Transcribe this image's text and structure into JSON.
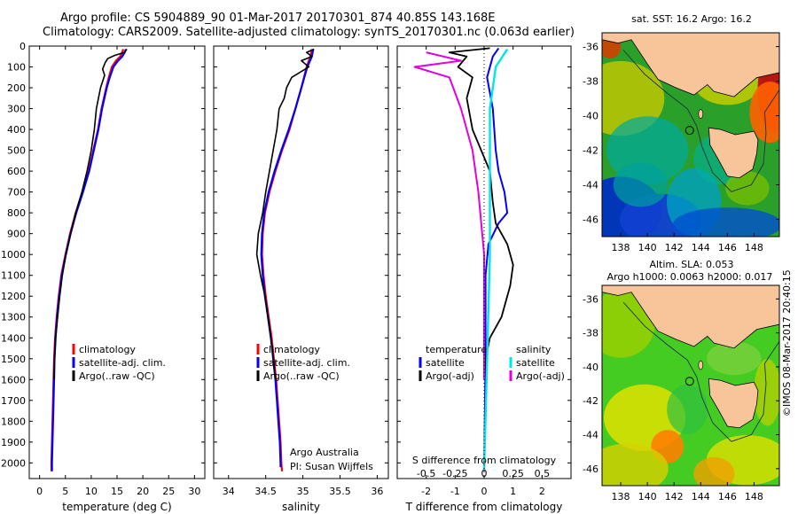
{
  "header": {
    "title_line1": "Argo profile: CS 5904889_90 01-Mar-2017 20170301_874 40.85S 143.168E",
    "title_line2": "Climatology: CARS2009. Satellite-adjusted climatology: synTS_20170301.nc (0.063d earlier)"
  },
  "stamp": "©IMOS 08-Mar-2017 20:40:15",
  "colors": {
    "climatology": "#ff0000",
    "satellite": "#0000ff",
    "argo": "#000000",
    "sal_satellite": "#00e5e5",
    "sal_argo": "#e000e0",
    "land": "#f8c49a"
  },
  "chart_data": [
    {
      "type": "line",
      "xlabel": "temperature (deg C)",
      "xlim": [
        -2,
        32
      ],
      "x_ticks": [
        "0",
        "5",
        "10",
        "15",
        "20",
        "25",
        "30"
      ],
      "ylim": [
        2075,
        0
      ],
      "y_ticks": [
        "0",
        "100",
        "200",
        "300",
        "400",
        "500",
        "600",
        "700",
        "800",
        "900",
        "1000",
        "1100",
        "1200",
        "1300",
        "1400",
        "1500",
        "1600",
        "1700",
        "1800",
        "1900",
        "2000"
      ],
      "legend": [
        "climatology",
        "satellite-adj. clim.",
        "Argo(..raw -QC)"
      ],
      "legend_position": "lower-right",
      "series": [
        {
          "name": "climatology",
          "values": [
            [
              16.2,
              15
            ],
            [
              16.0,
              30
            ],
            [
              15.6,
              50
            ],
            [
              14.8,
              70
            ],
            [
              14.0,
              100
            ],
            [
              13.4,
              150
            ],
            [
              12.9,
              200
            ],
            [
              12.0,
              300
            ],
            [
              11.3,
              400
            ],
            [
              10.4,
              500
            ],
            [
              9.5,
              600
            ],
            [
              8.3,
              700
            ],
            [
              7.0,
              800
            ],
            [
              5.9,
              900
            ],
            [
              5.0,
              1000
            ],
            [
              4.2,
              1100
            ],
            [
              3.7,
              1200
            ],
            [
              3.3,
              1300
            ],
            [
              3.0,
              1400
            ],
            [
              2.8,
              1500
            ],
            [
              2.7,
              1600
            ],
            [
              2.6,
              1700
            ],
            [
              2.5,
              1800
            ],
            [
              2.4,
              1900
            ],
            [
              2.3,
              2000
            ],
            [
              2.3,
              2040
            ]
          ]
        },
        {
          "name": "satellite-adj. clim.",
          "values": [
            [
              16.7,
              15
            ],
            [
              16.5,
              30
            ],
            [
              16.0,
              50
            ],
            [
              15.2,
              70
            ],
            [
              14.3,
              100
            ],
            [
              13.6,
              150
            ],
            [
              13.0,
              200
            ],
            [
              12.1,
              300
            ],
            [
              11.4,
              400
            ],
            [
              10.5,
              500
            ],
            [
              9.6,
              600
            ],
            [
              8.4,
              700
            ],
            [
              7.1,
              800
            ],
            [
              6.0,
              900
            ],
            [
              5.1,
              1000
            ],
            [
              4.3,
              1100
            ],
            [
              3.8,
              1200
            ],
            [
              3.4,
              1300
            ],
            [
              3.1,
              1400
            ],
            [
              2.9,
              1500
            ],
            [
              2.8,
              1600
            ],
            [
              2.7,
              1700
            ],
            [
              2.6,
              1800
            ],
            [
              2.5,
              1900
            ],
            [
              2.4,
              2000
            ],
            [
              2.4,
              2040
            ]
          ]
        },
        {
          "name": "Argo(..raw -QC)",
          "values": [
            [
              16.9,
              15
            ],
            [
              16.4,
              30
            ],
            [
              14.5,
              45
            ],
            [
              13.2,
              60
            ],
            [
              12.7,
              80
            ],
            [
              12.2,
              110
            ],
            [
              12.6,
              140
            ],
            [
              11.8,
              200
            ],
            [
              11.0,
              300
            ],
            [
              10.6,
              400
            ],
            [
              10.0,
              500
            ],
            [
              9.2,
              600
            ],
            [
              8.2,
              700
            ],
            [
              7.0,
              800
            ],
            [
              6.0,
              900
            ],
            [
              5.1,
              1000
            ],
            [
              4.4,
              1100
            ],
            [
              3.9,
              1200
            ],
            [
              3.5,
              1300
            ],
            [
              3.1,
              1400
            ],
            [
              2.9,
              1500
            ],
            [
              2.8,
              1600
            ]
          ]
        }
      ]
    },
    {
      "type": "line",
      "xlabel": "salinity",
      "xlim": [
        33.8,
        36.15
      ],
      "x_ticks": [
        "34",
        "34.5",
        "35",
        "35.5",
        "36"
      ],
      "ylim": [
        2075,
        0
      ],
      "legend": [
        "climatology",
        "satellite-adj. clim.",
        "Argo(..raw -QC)"
      ],
      "legend_position": "lower-right",
      "annotation": [
        "Argo Australia",
        "PI: Susan Wijffels"
      ],
      "series": [
        {
          "name": "climatology",
          "values": [
            [
              35.12,
              15
            ],
            [
              35.1,
              50
            ],
            [
              35.05,
              100
            ],
            [
              34.98,
              200
            ],
            [
              34.9,
              300
            ],
            [
              34.82,
              400
            ],
            [
              34.72,
              500
            ],
            [
              34.63,
              600
            ],
            [
              34.55,
              700
            ],
            [
              34.49,
              800
            ],
            [
              34.46,
              900
            ],
            [
              34.45,
              1000
            ],
            [
              34.47,
              1100
            ],
            [
              34.5,
              1200
            ],
            [
              34.54,
              1300
            ],
            [
              34.58,
              1400
            ],
            [
              34.61,
              1500
            ],
            [
              34.64,
              1600
            ],
            [
              34.66,
              1700
            ],
            [
              34.68,
              1800
            ],
            [
              34.7,
              1900
            ],
            [
              34.71,
              2000
            ],
            [
              34.72,
              2040
            ]
          ]
        },
        {
          "name": "satellite-adj. clim.",
          "values": [
            [
              35.14,
              15
            ],
            [
              35.12,
              50
            ],
            [
              35.06,
              100
            ],
            [
              34.98,
              200
            ],
            [
              34.9,
              300
            ],
            [
              34.81,
              400
            ],
            [
              34.71,
              500
            ],
            [
              34.62,
              600
            ],
            [
              34.54,
              700
            ],
            [
              34.48,
              800
            ],
            [
              34.45,
              900
            ],
            [
              34.44,
              1000
            ],
            [
              34.46,
              1100
            ],
            [
              34.49,
              1200
            ],
            [
              34.53,
              1300
            ],
            [
              34.57,
              1400
            ],
            [
              34.6,
              1500
            ],
            [
              34.63,
              1600
            ],
            [
              34.65,
              1700
            ],
            [
              34.67,
              1800
            ],
            [
              34.69,
              1900
            ],
            [
              34.7,
              2000
            ],
            [
              34.7,
              2020
            ]
          ]
        },
        {
          "name": "Argo(..raw -QC)",
          "values": [
            [
              35.15,
              15
            ],
            [
              35.05,
              30
            ],
            [
              35.12,
              50
            ],
            [
              34.98,
              70
            ],
            [
              35.08,
              100
            ],
            [
              34.85,
              150
            ],
            [
              34.78,
              200
            ],
            [
              34.75,
              250
            ],
            [
              34.68,
              300
            ],
            [
              34.65,
              400
            ],
            [
              34.6,
              500
            ],
            [
              34.55,
              600
            ],
            [
              34.5,
              700
            ],
            [
              34.46,
              800
            ],
            [
              34.4,
              900
            ],
            [
              34.38,
              1000
            ],
            [
              34.43,
              1100
            ],
            [
              34.49,
              1200
            ],
            [
              34.53,
              1300
            ],
            [
              34.57,
              1400
            ],
            [
              34.6,
              1500
            ],
            [
              34.63,
              1600
            ]
          ]
        }
      ]
    },
    {
      "type": "line",
      "xlabel": "T difference from climatology",
      "xlim": [
        -3,
        3
      ],
      "x_ticks": [
        "-2",
        "-1",
        "0",
        "1",
        "2"
      ],
      "x2label": "S difference from climatology",
      "x2_ticks": [
        "-0.5",
        "-0.25",
        "0",
        "0.25",
        "0.5"
      ],
      "ylim": [
        2075,
        0
      ],
      "legend_temperature": [
        "temperature",
        "satellite",
        "Argo(-adj)"
      ],
      "legend_salinity": [
        "salinity",
        "satellite",
        "Argo(-adj)"
      ],
      "series": [
        {
          "name": "satellite",
          "values": [
            [
              0.5,
              10
            ],
            [
              0.3,
              50
            ],
            [
              0.1,
              150
            ],
            [
              0.3,
              300
            ],
            [
              0.4,
              500
            ],
            [
              0.5,
              600
            ],
            [
              0.7,
              700
            ],
            [
              0.8,
              800
            ],
            [
              0.5,
              850
            ],
            [
              0.15,
              950
            ],
            [
              0.05,
              1100
            ],
            [
              0.05,
              1500
            ],
            [
              0.0,
              2040
            ]
          ]
        },
        {
          "name": "Argo(-adj)",
          "values": [
            [
              0.2,
              10
            ],
            [
              -1.2,
              30
            ],
            [
              -0.6,
              50
            ],
            [
              -0.9,
              100
            ],
            [
              -0.4,
              150
            ],
            [
              -0.6,
              250
            ],
            [
              -0.4,
              400
            ],
            [
              -0.1,
              500
            ],
            [
              0.2,
              600
            ],
            [
              0.3,
              750
            ],
            [
              0.4,
              850
            ],
            [
              0.8,
              950
            ],
            [
              1.0,
              1050
            ],
            [
              0.9,
              1150
            ],
            [
              0.6,
              1300
            ],
            [
              0.2,
              1400
            ],
            [
              0.05,
              1500
            ],
            [
              0.0,
              1600
            ]
          ]
        },
        {
          "name": "salinity satellite",
          "values": [
            [
              0.2,
              15
            ],
            [
              0.1,
              100
            ],
            [
              0.05,
              300
            ],
            [
              0.05,
              1000
            ],
            [
              0.0,
              2040
            ]
          ]
        },
        {
          "name": "salinity Argo(-adj)",
          "values": [
            [
              -0.5,
              30
            ],
            [
              -0.2,
              70
            ],
            [
              -0.6,
              100
            ],
            [
              -0.3,
              150
            ],
            [
              -0.2,
              300
            ],
            [
              -0.1,
              500
            ],
            [
              -0.05,
              700
            ],
            [
              0.0,
              1000
            ],
            [
              0.0,
              1600
            ]
          ]
        }
      ]
    }
  ],
  "maps": {
    "top": {
      "title": "sat. SST: 16.2  Argo: 16.2",
      "lat_ticks": [
        "-36",
        "-38",
        "-40",
        "-42",
        "-44",
        "-46"
      ],
      "lon_ticks": [
        "138",
        "140",
        "142",
        "144",
        "146",
        "148"
      ]
    },
    "bottom": {
      "title_line1": "Altim. SLA: 0.053",
      "title_line2": "Argo h1000: 0.0063 h2000: 0.017",
      "lat_ticks": [
        "-36",
        "-38",
        "-40",
        "-42",
        "-44",
        "-46"
      ],
      "lon_ticks": [
        "138",
        "140",
        "142",
        "144",
        "146",
        "148"
      ]
    }
  }
}
